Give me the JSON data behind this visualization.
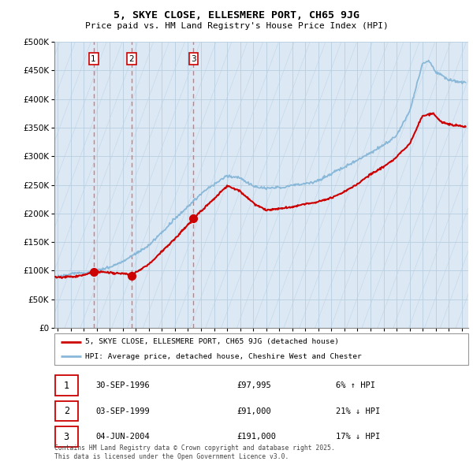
{
  "title_line1": "5, SKYE CLOSE, ELLESMERE PORT, CH65 9JG",
  "title_line2": "Price paid vs. HM Land Registry's House Price Index (HPI)",
  "legend_label1": "5, SKYE CLOSE, ELLESMERE PORT, CH65 9JG (detached house)",
  "legend_label2": "HPI: Average price, detached house, Cheshire West and Chester",
  "sale_dates": [
    1996.75,
    1999.67,
    2004.42
  ],
  "sale_prices": [
    97995,
    91000,
    191000
  ],
  "sale_labels": [
    "1",
    "2",
    "3"
  ],
  "sale_info": [
    [
      "1",
      "30-SEP-1996",
      "£97,995",
      "6% ↑ HPI"
    ],
    [
      "2",
      "03-SEP-1999",
      "£91,000",
      "21% ↓ HPI"
    ],
    [
      "3",
      "04-JUN-2004",
      "£191,000",
      "17% ↓ HPI"
    ]
  ],
  "hpi_color": "#89b8d8",
  "sale_color": "#cc0000",
  "dashed_color": "#e87070",
  "ylim": [
    0,
    500000
  ],
  "xlim_start": 1993.75,
  "xlim_end": 2025.5,
  "yticks": [
    0,
    50000,
    100000,
    150000,
    200000,
    250000,
    300000,
    350000,
    400000,
    450000,
    500000
  ],
  "footer_line1": "Contains HM Land Registry data © Crown copyright and database right 2025.",
  "footer_line2": "This data is licensed under the Open Government Licence v3.0.",
  "bg_color": "#dce9f5",
  "hatch_color": "#c5d8ea",
  "grid_color": "#b8cfe0"
}
